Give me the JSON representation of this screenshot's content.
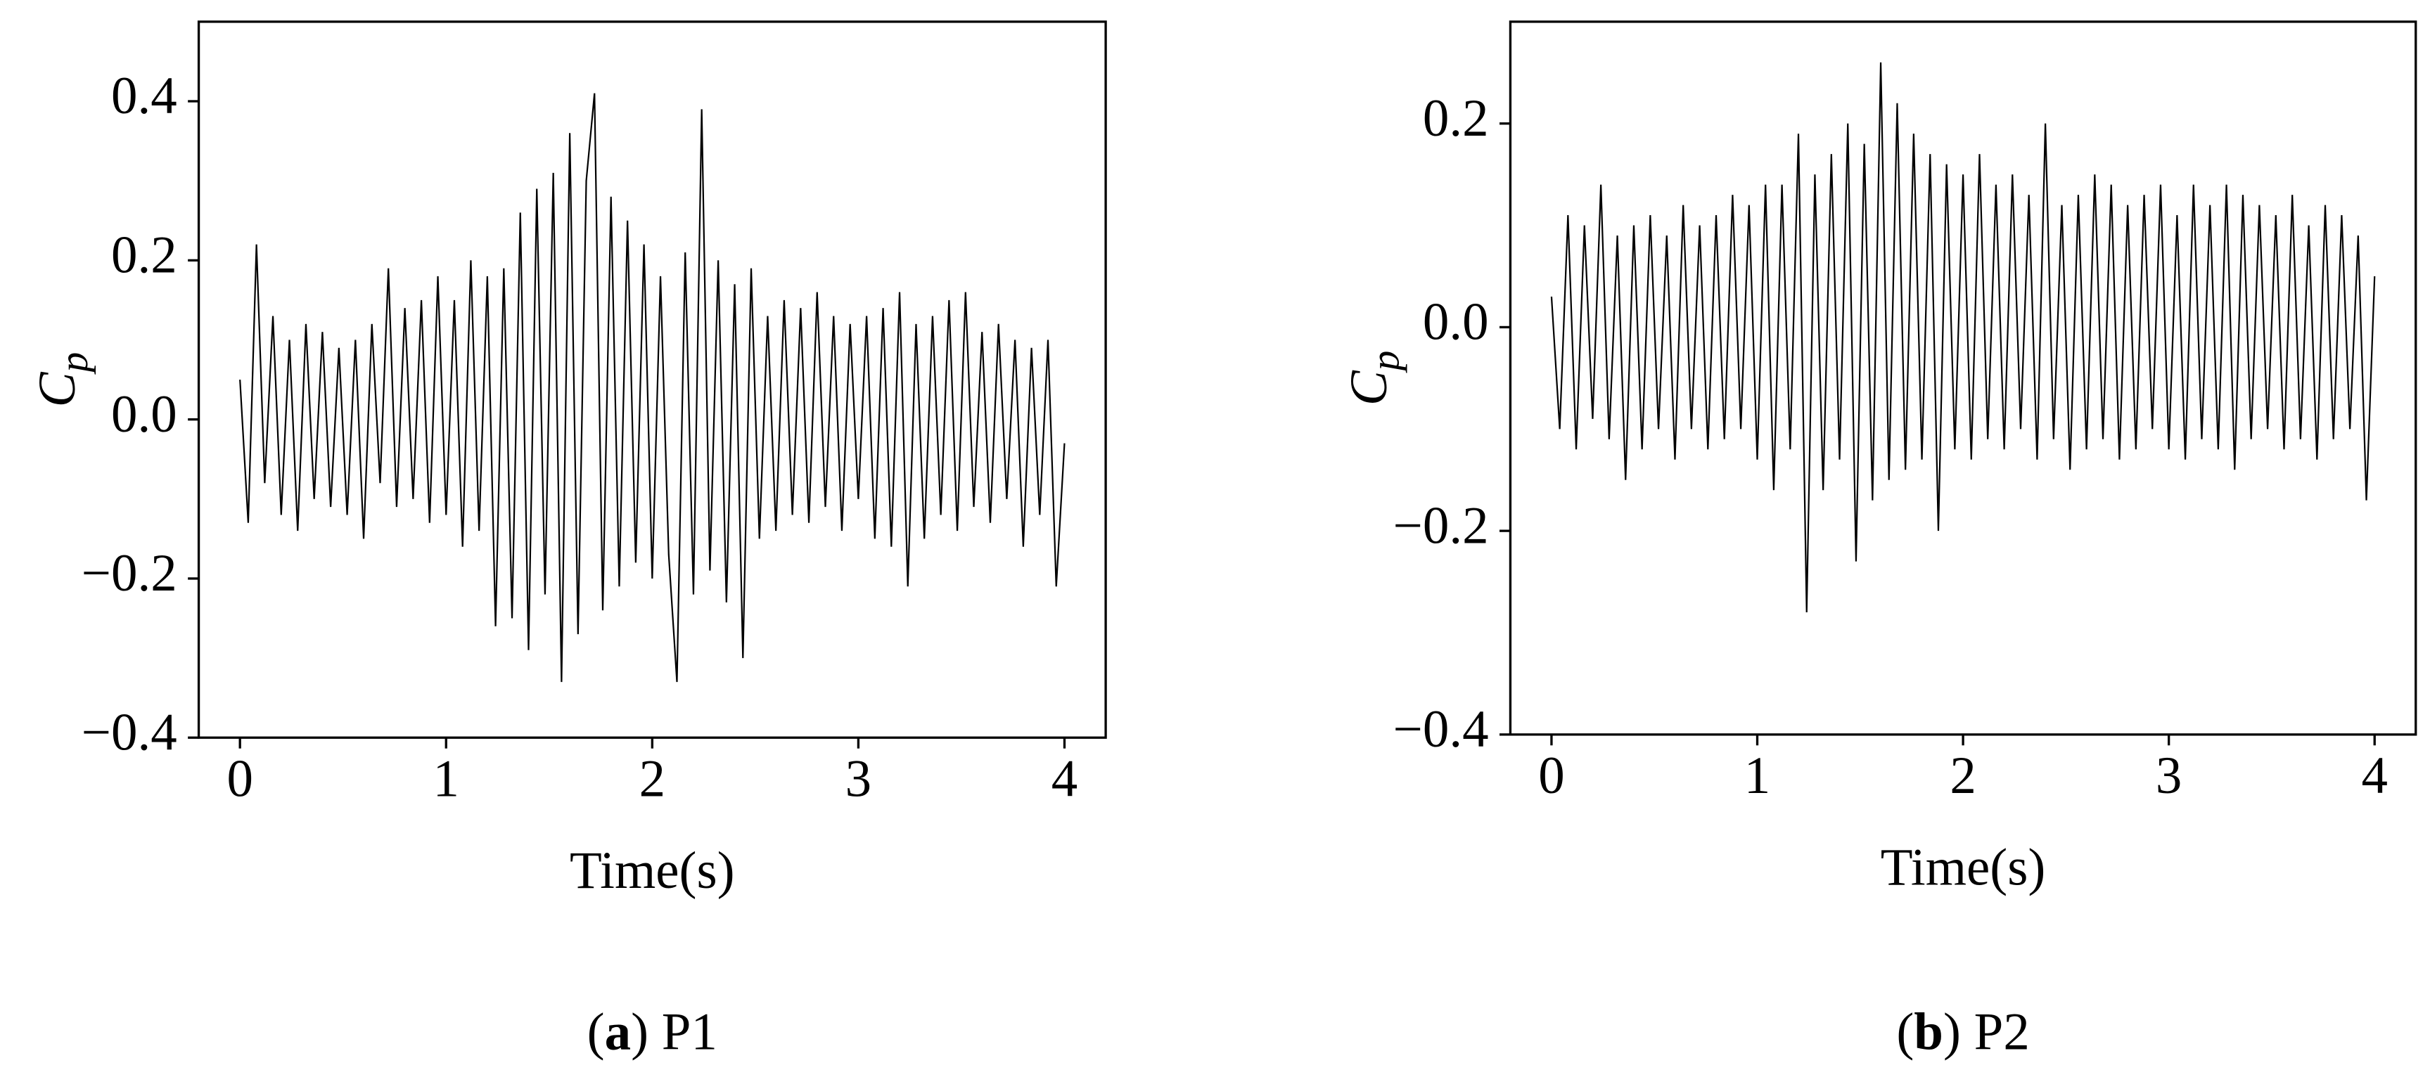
{
  "chart_data": [
    {
      "type": "line",
      "caption": [
        "(",
        "a",
        ") P1"
      ],
      "ylabel": {
        "base": "C",
        "subscript": "p"
      },
      "xlabel": "Time(s)",
      "color": "#000000",
      "xlim": [
        -0.2,
        4.2
      ],
      "ylim": [
        -0.4,
        0.5
      ],
      "xticks": [
        0,
        1,
        2,
        3,
        4
      ],
      "yticks": [
        {
          "value": -0.4,
          "label": "−0.4"
        },
        {
          "value": -0.2,
          "label": "−0.2"
        },
        {
          "value": 0,
          "label": "0.0"
        },
        0.2,
        0.4
      ],
      "x": [
        0,
        0.04,
        0.08,
        0.12,
        0.16,
        0.2,
        0.24,
        0.28,
        0.32,
        0.36,
        0.4,
        0.44,
        0.48,
        0.52,
        0.56,
        0.6,
        0.64,
        0.68,
        0.72,
        0.76,
        0.8,
        0.84,
        0.88,
        0.92,
        0.96,
        1,
        1.04,
        1.08,
        1.12,
        1.16,
        1.2,
        1.24,
        1.28,
        1.32,
        1.36,
        1.4,
        1.44,
        1.48,
        1.52,
        1.56,
        1.6,
        1.64,
        1.68,
        1.72,
        1.76,
        1.8,
        1.84,
        1.88,
        1.92,
        1.96,
        2,
        2.04,
        2.08,
        2.12,
        2.16,
        2.2,
        2.24,
        2.28,
        2.32,
        2.36,
        2.4,
        2.44,
        2.48,
        2.52,
        2.56,
        2.6,
        2.64,
        2.68,
        2.72,
        2.76,
        2.8,
        2.84,
        2.88,
        2.92,
        2.96,
        3,
        3.04,
        3.08,
        3.12,
        3.16,
        3.2,
        3.24,
        3.28,
        3.32,
        3.36,
        3.4,
        3.44,
        3.48,
        3.52,
        3.56,
        3.6,
        3.64,
        3.68,
        3.72,
        3.76,
        3.8,
        3.84,
        3.88,
        3.92,
        3.96,
        4
      ],
      "values": [
        0.05,
        -0.13,
        0.22,
        -0.08,
        0.13,
        -0.12,
        0.1,
        -0.14,
        0.12,
        -0.1,
        0.11,
        -0.11,
        0.09,
        -0.12,
        0.1,
        -0.15,
        0.12,
        -0.08,
        0.19,
        -0.11,
        0.14,
        -0.1,
        0.15,
        -0.13,
        0.18,
        -0.12,
        0.15,
        -0.16,
        0.2,
        -0.14,
        0.18,
        -0.26,
        0.19,
        -0.25,
        0.26,
        -0.29,
        0.29,
        -0.22,
        0.31,
        -0.33,
        0.36,
        -0.27,
        0.3,
        0.41,
        -0.24,
        0.28,
        -0.21,
        0.25,
        -0.18,
        0.22,
        -0.2,
        0.18,
        -0.17,
        -0.33,
        0.21,
        -0.22,
        0.39,
        -0.19,
        0.2,
        -0.23,
        0.17,
        -0.3,
        0.19,
        -0.15,
        0.13,
        -0.14,
        0.15,
        -0.12,
        0.14,
        -0.13,
        0.16,
        -0.11,
        0.13,
        -0.14,
        0.12,
        -0.1,
        0.13,
        -0.15,
        0.14,
        -0.16,
        0.16,
        -0.21,
        0.12,
        -0.15,
        0.13,
        -0.12,
        0.15,
        -0.14,
        0.16,
        -0.11,
        0.11,
        -0.13,
        0.12,
        -0.1,
        0.1,
        -0.16,
        0.09,
        -0.12,
        0.1,
        -0.21,
        -0.03
      ]
    },
    {
      "type": "line",
      "caption": [
        "(",
        "b",
        ") P2"
      ],
      "ylabel": {
        "base": "C",
        "subscript": "p"
      },
      "xlabel": "Time(s)",
      "color": "#000000",
      "xlim": [
        -0.2,
        4.2
      ],
      "ylim": [
        -0.4,
        0.3
      ],
      "xticks": [
        0,
        1,
        2,
        3,
        4
      ],
      "yticks": [
        {
          "value": -0.4,
          "label": "−0.4"
        },
        {
          "value": -0.2,
          "label": "−0.2"
        },
        {
          "value": 0,
          "label": "0.0"
        },
        0.2
      ],
      "x": [
        0,
        0.04,
        0.08,
        0.12,
        0.16,
        0.2,
        0.24,
        0.28,
        0.32,
        0.36,
        0.4,
        0.44,
        0.48,
        0.52,
        0.56,
        0.6,
        0.64,
        0.68,
        0.72,
        0.76,
        0.8,
        0.84,
        0.88,
        0.92,
        0.96,
        1,
        1.04,
        1.08,
        1.12,
        1.16,
        1.2,
        1.24,
        1.28,
        1.32,
        1.36,
        1.4,
        1.44,
        1.48,
        1.52,
        1.56,
        1.6,
        1.64,
        1.68,
        1.72,
        1.76,
        1.8,
        1.84,
        1.88,
        1.92,
        1.96,
        2,
        2.04,
        2.08,
        2.12,
        2.16,
        2.2,
        2.24,
        2.28,
        2.32,
        2.36,
        2.4,
        2.44,
        2.48,
        2.52,
        2.56,
        2.6,
        2.64,
        2.68,
        2.72,
        2.76,
        2.8,
        2.84,
        2.88,
        2.92,
        2.96,
        3,
        3.04,
        3.08,
        3.12,
        3.16,
        3.2,
        3.24,
        3.28,
        3.32,
        3.36,
        3.4,
        3.44,
        3.48,
        3.52,
        3.56,
        3.6,
        3.64,
        3.68,
        3.72,
        3.76,
        3.8,
        3.84,
        3.88,
        3.92,
        3.96,
        4
      ],
      "values": [
        0.03,
        -0.1,
        0.11,
        -0.12,
        0.1,
        -0.09,
        0.14,
        -0.11,
        0.09,
        -0.15,
        0.1,
        -0.12,
        0.11,
        -0.1,
        0.09,
        -0.13,
        0.12,
        -0.1,
        0.1,
        -0.12,
        0.11,
        -0.11,
        0.13,
        -0.1,
        0.12,
        -0.13,
        0.14,
        -0.16,
        0.14,
        -0.12,
        0.19,
        -0.28,
        0.15,
        -0.16,
        0.17,
        -0.13,
        0.2,
        -0.23,
        0.18,
        -0.17,
        0.26,
        -0.15,
        0.22,
        -0.14,
        0.19,
        -0.13,
        0.17,
        -0.2,
        0.16,
        -0.12,
        0.15,
        -0.13,
        0.17,
        -0.11,
        0.14,
        -0.12,
        0.15,
        -0.1,
        0.13,
        -0.13,
        0.2,
        -0.11,
        0.12,
        -0.14,
        0.13,
        -0.12,
        0.15,
        -0.11,
        0.14,
        -0.13,
        0.12,
        -0.12,
        0.13,
        -0.1,
        0.14,
        -0.12,
        0.11,
        -0.13,
        0.14,
        -0.11,
        0.12,
        -0.12,
        0.14,
        -0.14,
        0.13,
        -0.11,
        0.12,
        -0.1,
        0.11,
        -0.12,
        0.13,
        -0.11,
        0.1,
        -0.13,
        0.12,
        -0.11,
        0.11,
        -0.1,
        0.09,
        -0.17,
        0.05
      ]
    }
  ]
}
